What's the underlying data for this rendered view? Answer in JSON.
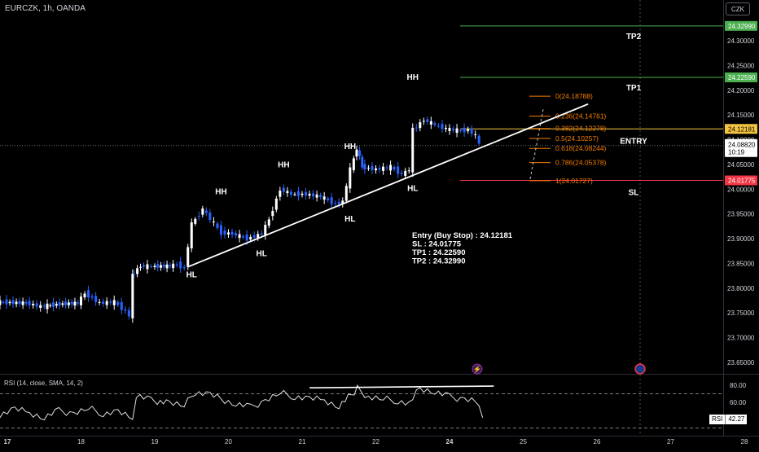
{
  "header": {
    "symbol_title": "EURCZK, 1h, OANDA",
    "currency": "CZK"
  },
  "chart_data": {
    "type": "candlestick",
    "symbol": "EURCZK",
    "timeframe": "1h",
    "source": "OANDA",
    "ylim": [
      23.65,
      24.35
    ],
    "y_ticks": [
      "24.30000",
      "24.25000",
      "24.20000",
      "24.15000",
      "24.10000",
      "24.05000",
      "24.00000",
      "23.95000",
      "23.90000",
      "23.85000",
      "23.80000",
      "23.75000",
      "23.70000",
      "23.65000"
    ],
    "x_ticks": [
      "17",
      "18",
      "19",
      "20",
      "21",
      "22",
      "24",
      "25",
      "26",
      "27",
      "28"
    ],
    "current_price": "24.08820",
    "countdown": "10:19",
    "price_levels": [
      {
        "name": "TP2",
        "label": "TP2",
        "price": 24.3299,
        "tag": "24.32990",
        "color": "#4caf50"
      },
      {
        "name": "TP1",
        "label": "TP1",
        "price": 24.2259,
        "tag": "24.22590",
        "color": "#4caf50"
      },
      {
        "name": "Entry",
        "label": "ENTRY",
        "price": 24.12181,
        "tag": "24.12181",
        "color": "#f5c542"
      },
      {
        "name": "SL",
        "label": "SL",
        "price": 24.01775,
        "tag": "24.01775",
        "color": "#f23645"
      }
    ],
    "fib_levels": [
      {
        "ratio": "0",
        "price": 24.18788,
        "label": "0(24.18788)"
      },
      {
        "ratio": "0.236",
        "price": 24.14761,
        "label": "0.236(24.14761)"
      },
      {
        "ratio": "0.382",
        "price": 24.12278,
        "label": "0.382(24.12278)"
      },
      {
        "ratio": "0.5",
        "price": 24.10257,
        "label": "0.5(24.10257)"
      },
      {
        "ratio": "0.618",
        "price": 24.08244,
        "label": "0.618(24.08244)"
      },
      {
        "ratio": "0.786",
        "price": 24.05378,
        "label": "0.786(24.05378)"
      },
      {
        "ratio": "1",
        "price": 24.01727,
        "label": "1(24.01727)"
      }
    ],
    "structure_labels": [
      {
        "text": "HL",
        "time": 19.5,
        "price": 23.822
      },
      {
        "text": "HH",
        "time": 19.9,
        "price": 23.99
      },
      {
        "text": "HL",
        "time": 20.45,
        "price": 23.865
      },
      {
        "text": "HH",
        "time": 20.75,
        "price": 24.044
      },
      {
        "text": "HL",
        "time": 21.65,
        "price": 23.935
      },
      {
        "text": "HH",
        "time": 21.65,
        "price": 24.081
      },
      {
        "text": "HL",
        "time": 22.5,
        "price": 23.996
      },
      {
        "text": "HH",
        "time": 22.5,
        "price": 24.221
      }
    ],
    "trade_note": [
      "Entry (Buy Stop) : 24.12181",
      "SL : 24.01775",
      "TP1 : 24.22590",
      "TP2 : 24.32990"
    ],
    "trendline": {
      "from": {
        "time": 19.45,
        "price": 23.843
      },
      "to": {
        "time": 24.88,
        "price": 24.172
      }
    },
    "price_series": [
      {
        "time": 16.9,
        "price": 23.772
      },
      {
        "time": 17.3,
        "price": 23.77
      },
      {
        "time": 17.5,
        "price": 23.763
      },
      {
        "time": 17.75,
        "price": 23.768
      },
      {
        "time": 18.0,
        "price": 23.77
      },
      {
        "time": 18.1,
        "price": 23.79
      },
      {
        "time": 18.3,
        "price": 23.77
      },
      {
        "time": 18.5,
        "price": 23.772
      },
      {
        "time": 18.6,
        "price": 23.76
      },
      {
        "time": 18.7,
        "price": 23.745
      },
      {
        "time": 18.72,
        "price": 23.825
      },
      {
        "time": 18.85,
        "price": 23.845
      },
      {
        "time": 19.0,
        "price": 23.844
      },
      {
        "time": 19.25,
        "price": 23.845
      },
      {
        "time": 19.35,
        "price": 23.848
      },
      {
        "time": 19.45,
        "price": 23.84
      },
      {
        "time": 19.55,
        "price": 23.93
      },
      {
        "time": 19.7,
        "price": 23.96
      },
      {
        "time": 19.8,
        "price": 23.94
      },
      {
        "time": 19.95,
        "price": 23.912
      },
      {
        "time": 20.1,
        "price": 23.91
      },
      {
        "time": 20.3,
        "price": 23.9
      },
      {
        "time": 20.5,
        "price": 23.91
      },
      {
        "time": 20.6,
        "price": 23.94
      },
      {
        "time": 20.75,
        "price": 24.0
      },
      {
        "time": 20.9,
        "price": 23.99
      },
      {
        "time": 21.1,
        "price": 23.99
      },
      {
        "time": 21.3,
        "price": 23.985
      },
      {
        "time": 21.5,
        "price": 23.97
      },
      {
        "time": 21.6,
        "price": 23.975
      },
      {
        "time": 21.7,
        "price": 24.04
      },
      {
        "time": 21.78,
        "price": 24.083
      },
      {
        "time": 21.85,
        "price": 24.045
      },
      {
        "time": 22.05,
        "price": 24.04
      },
      {
        "time": 22.25,
        "price": 24.045
      },
      {
        "time": 22.4,
        "price": 24.03
      },
      {
        "time": 22.5,
        "price": 24.04
      },
      {
        "time": 22.55,
        "price": 24.12
      },
      {
        "time": 22.7,
        "price": 24.14
      },
      {
        "time": 22.85,
        "price": 24.13
      },
      {
        "time": 23.0,
        "price": 24.122
      },
      {
        "time": 23.2,
        "price": 24.118
      },
      {
        "time": 23.3,
        "price": 24.12
      },
      {
        "time": 23.4,
        "price": 24.108
      },
      {
        "time": 23.45,
        "price": 24.092
      }
    ],
    "rsi": {
      "title": "RSI (14, close, SMA, 14, 2)",
      "label": "RSI",
      "current": "42.27",
      "ylim": [
        30,
        90
      ],
      "y_ticks": [
        "80.00",
        "60.00"
      ],
      "bands": [
        70,
        30
      ],
      "divergence_line": {
        "from": {
          "time": 21.1,
          "value": 77
        },
        "to": {
          "time": 23.6,
          "value": 79
        }
      },
      "values": [
        {
          "time": 16.9,
          "value": 46
        },
        {
          "time": 17.1,
          "value": 52
        },
        {
          "time": 17.3,
          "value": 48
        },
        {
          "time": 17.5,
          "value": 42
        },
        {
          "time": 17.7,
          "value": 50
        },
        {
          "time": 17.9,
          "value": 47
        },
        {
          "time": 18.1,
          "value": 53
        },
        {
          "time": 18.3,
          "value": 47
        },
        {
          "time": 18.5,
          "value": 49
        },
        {
          "time": 18.7,
          "value": 40
        },
        {
          "time": 18.75,
          "value": 68
        },
        {
          "time": 18.95,
          "value": 62
        },
        {
          "time": 19.2,
          "value": 60
        },
        {
          "time": 19.4,
          "value": 56
        },
        {
          "time": 19.55,
          "value": 72
        },
        {
          "time": 19.75,
          "value": 69
        },
        {
          "time": 19.9,
          "value": 64
        },
        {
          "time": 20.1,
          "value": 58
        },
        {
          "time": 20.3,
          "value": 54
        },
        {
          "time": 20.5,
          "value": 62
        },
        {
          "time": 20.7,
          "value": 71
        },
        {
          "time": 20.9,
          "value": 67
        },
        {
          "time": 21.1,
          "value": 64
        },
        {
          "time": 21.3,
          "value": 63
        },
        {
          "time": 21.5,
          "value": 55
        },
        {
          "time": 21.75,
          "value": 76
        },
        {
          "time": 21.9,
          "value": 66
        },
        {
          "time": 22.1,
          "value": 64
        },
        {
          "time": 22.3,
          "value": 62
        },
        {
          "time": 22.45,
          "value": 58
        },
        {
          "time": 22.6,
          "value": 77
        },
        {
          "time": 22.8,
          "value": 72
        },
        {
          "time": 23.0,
          "value": 66
        },
        {
          "time": 23.2,
          "value": 64
        },
        {
          "time": 23.35,
          "value": 62
        },
        {
          "time": 23.45,
          "value": 42
        }
      ]
    }
  }
}
